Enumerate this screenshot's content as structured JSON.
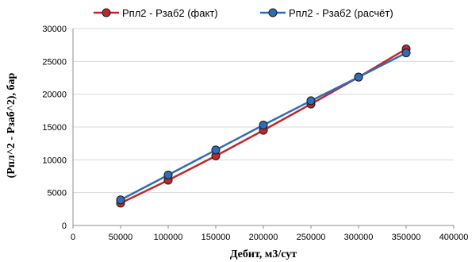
{
  "chart_data": {
    "type": "line",
    "title": "",
    "xlabel": "Дебит, м3/сут",
    "ylabel": "(Рпл^2 - Рзаб^2), бар",
    "xlim": [
      0,
      400000
    ],
    "ylim": [
      0,
      30000
    ],
    "x_ticks": [
      0,
      50000,
      100000,
      150000,
      200000,
      250000,
      300000,
      350000,
      400000
    ],
    "y_ticks": [
      0,
      5000,
      10000,
      15000,
      20000,
      25000,
      30000
    ],
    "grid": "horizontal",
    "legend_position": "top",
    "x": [
      50000,
      100000,
      150000,
      200000,
      250000,
      300000,
      350000
    ],
    "series": [
      {
        "name": "Рпл2 - Рзаб2 (факт)",
        "color": "#c0272d",
        "values": [
          3400,
          6900,
          10600,
          14500,
          18500,
          22600,
          26900
        ]
      },
      {
        "name": "Рпл2 - Рзаб2 (расчёт)",
        "color": "#2e6db5",
        "values": [
          3900,
          7700,
          11500,
          15300,
          19000,
          22600,
          26300
        ]
      }
    ]
  }
}
